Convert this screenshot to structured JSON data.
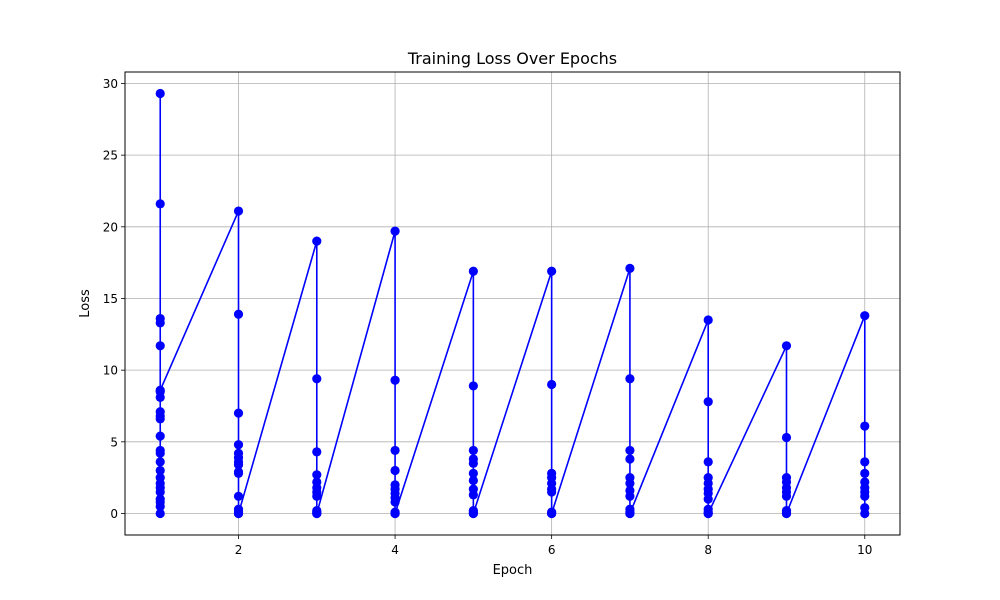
{
  "chart_data": {
    "type": "line",
    "title": "Training Loss Over Epochs",
    "xlabel": "Epoch",
    "ylabel": "Loss",
    "xlim": [
      0.55,
      10.45
    ],
    "ylim": [
      -1.5,
      30.8
    ],
    "xticks": [
      2,
      4,
      6,
      8,
      10
    ],
    "xtick_labels": [
      "2",
      "4",
      "6",
      "8",
      "10"
    ],
    "yticks": [
      0,
      5,
      10,
      15,
      20,
      25,
      30
    ],
    "ytick_labels": [
      "0",
      "5",
      "10",
      "15",
      "20",
      "25",
      "30"
    ],
    "grid": true,
    "series": [
      {
        "color": "#0000ff",
        "marker": "circle",
        "points": [
          {
            "epoch": 1,
            "values": [
              29.3,
              21.6,
              13.6,
              13.3,
              11.7,
              8.5,
              8.1,
              7.1,
              6.8,
              6.6,
              5.4,
              4.4,
              4.2,
              3.6,
              3.0,
              2.5,
              2.1,
              1.8,
              1.5,
              1.0,
              0.8,
              0.5,
              0.0,
              8.6
            ]
          },
          {
            "epoch": 2,
            "values": [
              21.1,
              13.9,
              7.0,
              4.8,
              4.2,
              3.9,
              3.6,
              3.4,
              2.9,
              2.8,
              1.2,
              0.3,
              0.1,
              0.0,
              0.0
            ]
          },
          {
            "epoch": 3,
            "values": [
              19.0,
              9.4,
              4.3,
              2.7,
              2.2,
              1.8,
              1.5,
              1.2,
              0.2,
              0.1,
              0.0,
              0.0
            ]
          },
          {
            "epoch": 4,
            "values": [
              19.7,
              9.3,
              4.4,
              3.0,
              2.0,
              1.7,
              1.4,
              1.1,
              0.8,
              0.1,
              0.0,
              0.0
            ]
          },
          {
            "epoch": 5,
            "values": [
              16.9,
              8.9,
              4.4,
              3.8,
              3.5,
              2.8,
              2.3,
              1.7,
              1.3,
              0.2,
              0.1,
              0.0,
              0.0
            ]
          },
          {
            "epoch": 6,
            "values": [
              16.9,
              9.0,
              2.8,
              2.5,
              2.1,
              1.7,
              1.5,
              0.1,
              0.0,
              0.0
            ]
          },
          {
            "epoch": 7,
            "values": [
              17.1,
              9.4,
              4.4,
              3.8,
              2.5,
              2.1,
              1.6,
              1.2,
              0.3,
              0.1,
              0.0,
              0.0
            ]
          },
          {
            "epoch": 8,
            "values": [
              13.5,
              7.8,
              3.6,
              2.5,
              2.1,
              1.7,
              1.4,
              1.0,
              0.3,
              0.1,
              0.0,
              0.0
            ]
          },
          {
            "epoch": 9,
            "values": [
              11.7,
              5.3,
              2.5,
              2.2,
              1.8,
              1.5,
              1.2,
              0.2,
              0.1,
              0.0,
              0.0
            ]
          },
          {
            "epoch": 10,
            "values": [
              13.8,
              6.1,
              3.6,
              2.8,
              2.2,
              1.8,
              1.5,
              1.2,
              0.4,
              0.0
            ]
          }
        ]
      }
    ]
  }
}
